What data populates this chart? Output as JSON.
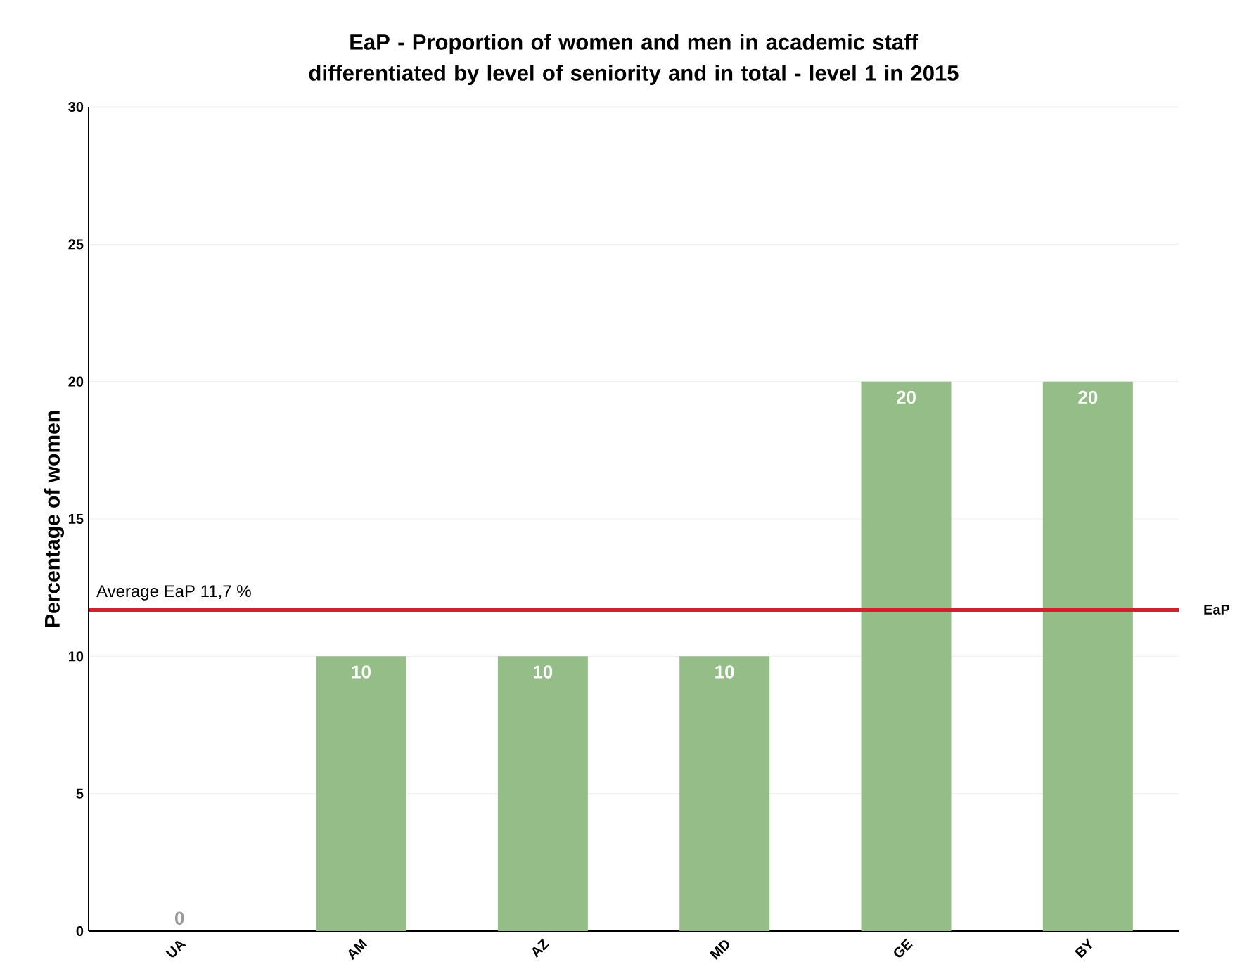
{
  "chart_data": {
    "type": "bar",
    "title": "EaP - Proportion of women and men in academic staff differentiated by level of seniority and in total - level 1 in 2015",
    "ylabel": "Percentage of women",
    "categories": [
      "UA",
      "AM",
      "AZ",
      "MD",
      "GE",
      "BY"
    ],
    "values": [
      0,
      10,
      10,
      10,
      20,
      20
    ],
    "color": "#95bd88",
    "data_labels": true,
    "ylim": [
      0,
      30
    ],
    "yticks": [
      0,
      5,
      10,
      15,
      20,
      25,
      30
    ],
    "grid": "y",
    "ref_lines": [
      {
        "axis": "y",
        "value": 11.7,
        "label": "EaP",
        "color": "#d3202e"
      }
    ],
    "annotations": [
      {
        "text": "Average EaP  11,7 %",
        "y": 11.7
      }
    ]
  }
}
